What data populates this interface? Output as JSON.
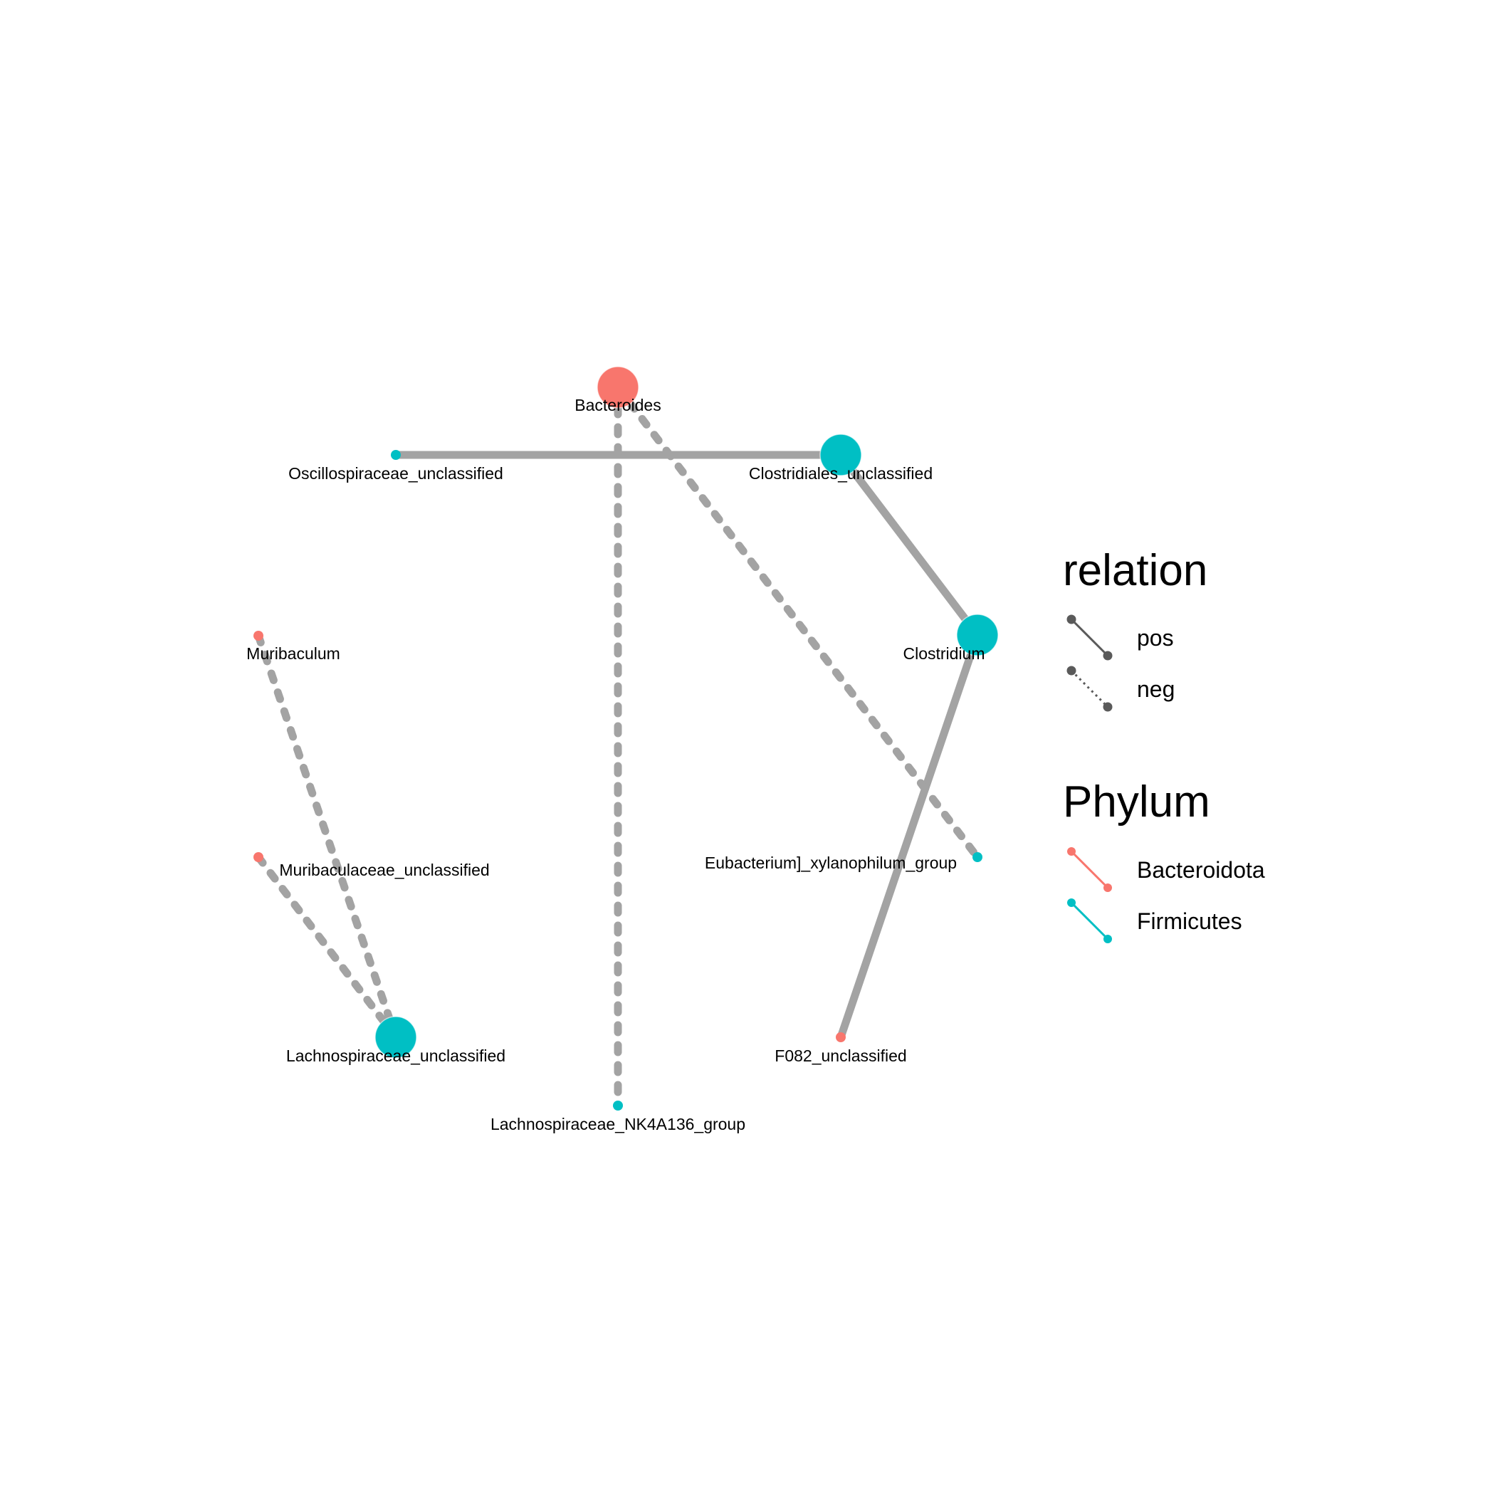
{
  "network": {
    "nodes": [
      {
        "id": "Bacteroides",
        "label": "Bacteroides",
        "phylum": "Bacteroidota",
        "size": "large"
      },
      {
        "id": "Oscillospiraceae_unclassified",
        "label": "Oscillospiraceae_unclassified",
        "phylum": "Firmicutes",
        "size": "small"
      },
      {
        "id": "Clostridiales_unclassified",
        "label": "Clostridiales_unclassified",
        "phylum": "Firmicutes",
        "size": "large"
      },
      {
        "id": "Clostridium",
        "label": "Clostridium",
        "phylum": "Firmicutes",
        "size": "large"
      },
      {
        "id": "Muribaculum",
        "label": "Muribaculum",
        "phylum": "Bacteroidota",
        "size": "small"
      },
      {
        "id": "Muribaculaceae_unclassified",
        "label": "Muribaculaceae_unclassified",
        "phylum": "Bacteroidota",
        "size": "small"
      },
      {
        "id": "Eubacterium_xylanophilum_group",
        "label": "Eubacterium]_xylanophilum_group",
        "phylum": "Firmicutes",
        "size": "small"
      },
      {
        "id": "Lachnospiraceae_unclassified",
        "label": "Lachnospiraceae_unclassified",
        "phylum": "Firmicutes",
        "size": "large"
      },
      {
        "id": "F082_unclassified",
        "label": "F082_unclassified",
        "phylum": "Bacteroidota",
        "size": "small"
      },
      {
        "id": "Lachnospiraceae_NK4A136_group",
        "label": "Lachnospiraceae_NK4A136_group",
        "phylum": "Firmicutes",
        "size": "small"
      }
    ],
    "edges": [
      {
        "source": "Oscillospiraceae_unclassified",
        "target": "Clostridiales_unclassified",
        "relation": "pos"
      },
      {
        "source": "Clostridiales_unclassified",
        "target": "Clostridium",
        "relation": "pos"
      },
      {
        "source": "Clostridium",
        "target": "F082_unclassified",
        "relation": "pos"
      },
      {
        "source": "Bacteroides",
        "target": "Lachnospiraceae_NK4A136_group",
        "relation": "neg"
      },
      {
        "source": "Bacteroides",
        "target": "Eubacterium_xylanophilum_group",
        "relation": "neg"
      },
      {
        "source": "Muribaculum",
        "target": "Lachnospiraceae_unclassified",
        "relation": "neg"
      },
      {
        "source": "Muribaculaceae_unclassified",
        "target": "Lachnospiraceae_unclassified",
        "relation": "neg"
      }
    ]
  },
  "legend": {
    "relation": {
      "title": "relation",
      "items": [
        {
          "key": "pos",
          "label": "pos",
          "style": "solid"
        },
        {
          "key": "neg",
          "label": "neg",
          "style": "dotted"
        }
      ]
    },
    "phylum": {
      "title": "Phylum",
      "items": [
        {
          "key": "Bacteroidota",
          "label": "Bacteroidota",
          "color": "#F8766D"
        },
        {
          "key": "Firmicutes",
          "label": "Firmicutes",
          "color": "#00BFC4"
        }
      ]
    }
  },
  "colors": {
    "edge": "#A3A3A3",
    "legend_line": "#5A5A5A",
    "Bacteroidota": "#F8766D",
    "Firmicutes": "#00BFC4"
  }
}
